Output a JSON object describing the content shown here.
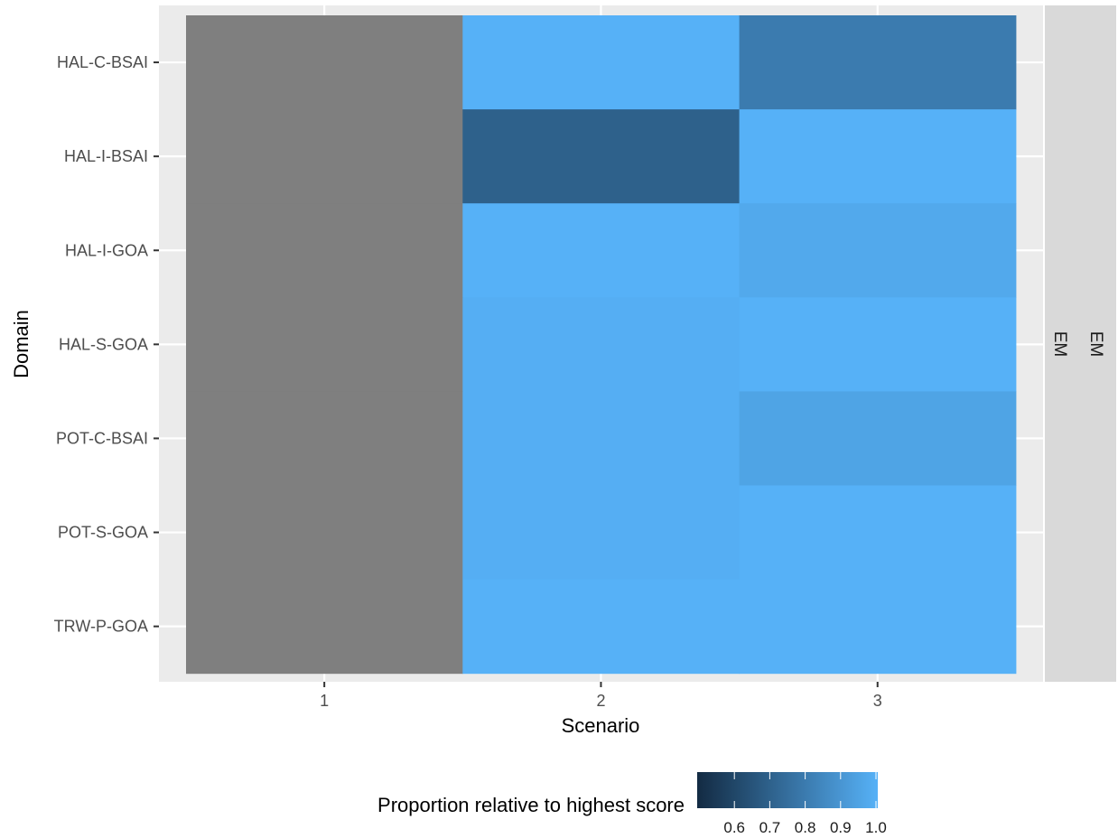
{
  "chart_data": {
    "type": "heatmap",
    "xlabel": "Scenario",
    "ylabel": "Domain",
    "x_categories": [
      "1",
      "2",
      "3"
    ],
    "y_categories": [
      "HAL-C-BSAI",
      "HAL-I-BSAI",
      "HAL-I-GOA",
      "HAL-S-GOA",
      "POT-C-BSAI",
      "POT-S-GOA",
      "TRW-P-GOA"
    ],
    "facet_strips": [
      "EM",
      "EM"
    ],
    "values": [
      [
        null,
        1.0,
        0.8
      ],
      [
        null,
        0.7,
        1.0
      ],
      [
        null,
        1.0,
        0.97
      ],
      [
        null,
        0.99,
        1.0
      ],
      [
        null,
        0.99,
        0.95
      ],
      [
        null,
        0.99,
        1.0
      ],
      [
        null,
        1.0,
        1.0
      ]
    ],
    "na_color": "#7f7f7f",
    "color_scale": {
      "low": "#132B43",
      "high": "#56B1F7",
      "domain": [
        0.5,
        1.0
      ]
    },
    "legend": {
      "title": "Proportion relative to highest score",
      "position": "bottom",
      "ticks": [
        0.6,
        0.7,
        0.8,
        0.9,
        1.0
      ],
      "tick_labels": [
        "0.6",
        "0.7",
        "0.8",
        "0.9",
        "1.0"
      ]
    },
    "grid": true
  }
}
